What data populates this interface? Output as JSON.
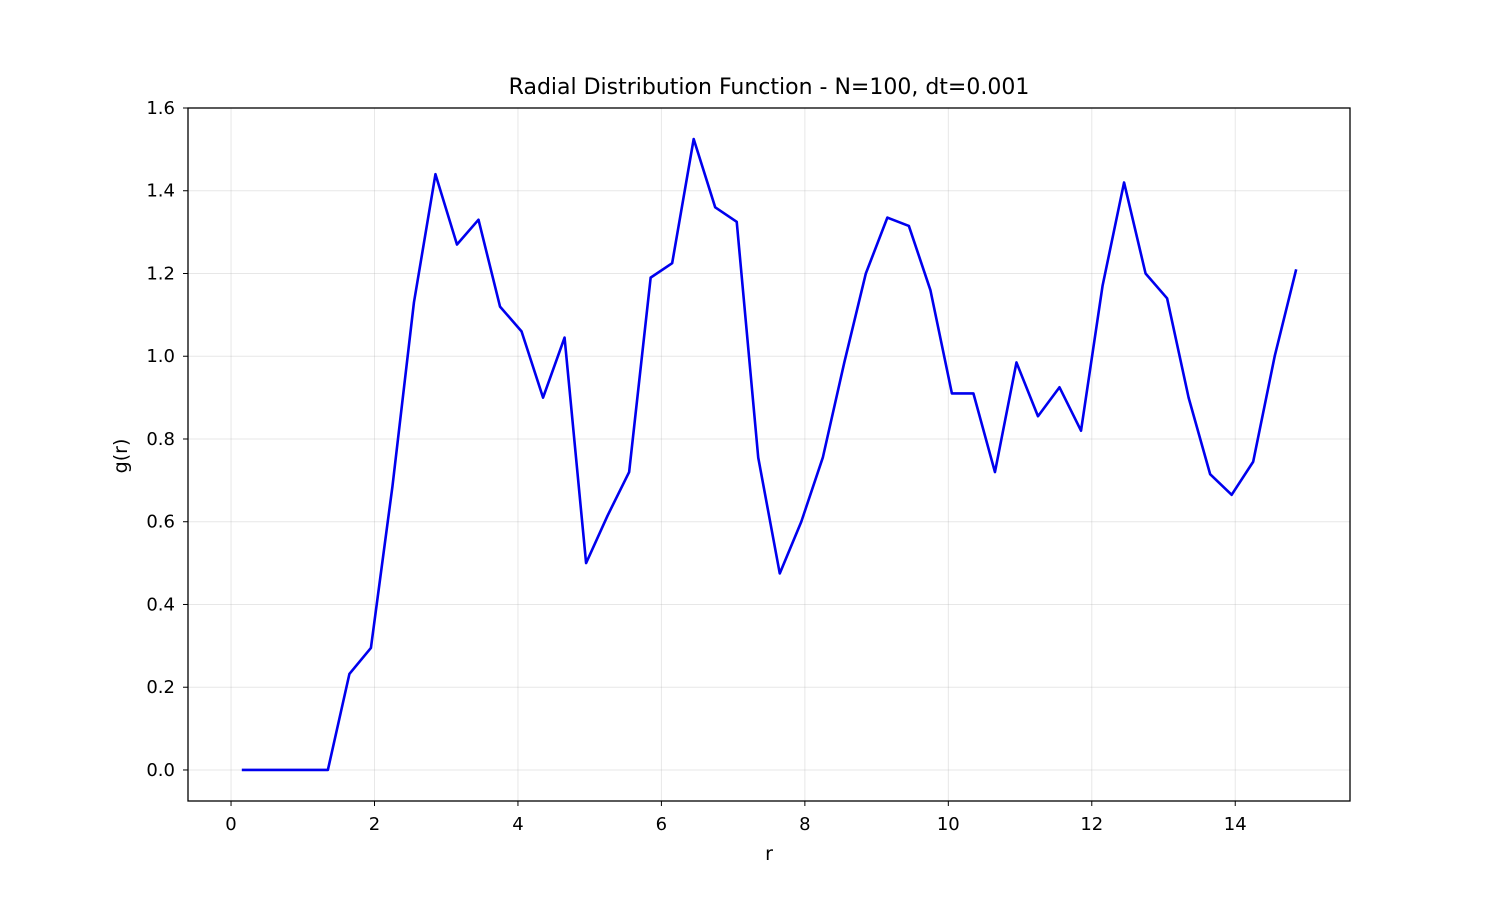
{
  "chart_data": {
    "type": "line",
    "title": "Radial Distribution Function - N=100, dt=0.001",
    "xlabel": "r",
    "ylabel": "g(r)",
    "xlim": [
      -0.6,
      15.6
    ],
    "ylim": [
      -0.075,
      1.6
    ],
    "xticks": [
      0,
      2,
      4,
      6,
      8,
      10,
      12,
      14
    ],
    "yticks": [
      0.0,
      0.2,
      0.4,
      0.6,
      0.8,
      1.0,
      1.2,
      1.4,
      1.6
    ],
    "grid": true,
    "series": [
      {
        "color": "#0000ee",
        "x": [
          0.15,
          0.45,
          0.75,
          1.05,
          1.35,
          1.65,
          1.95,
          2.25,
          2.55,
          2.85,
          3.15,
          3.45,
          3.75,
          4.05,
          4.35,
          4.65,
          4.95,
          5.25,
          5.55,
          5.85,
          6.15,
          6.45,
          6.75,
          7.05,
          7.35,
          7.65,
          7.95,
          8.25,
          8.55,
          8.85,
          9.15,
          9.45,
          9.75,
          10.05,
          10.35,
          10.65,
          10.95,
          11.25,
          11.55,
          11.85,
          12.15,
          12.45,
          12.75,
          13.05,
          13.35,
          13.65,
          13.95,
          14.25,
          14.55,
          14.85
        ],
        "y": [
          0.0,
          0.0,
          0.0,
          0.0,
          0.0,
          0.232,
          0.295,
          0.685,
          1.13,
          1.44,
          1.27,
          1.33,
          1.12,
          1.06,
          0.9,
          1.045,
          0.5,
          0.615,
          0.72,
          1.19,
          1.225,
          1.525,
          1.36,
          1.325,
          0.755,
          0.475,
          0.6,
          0.755,
          0.985,
          1.2,
          1.335,
          1.315,
          1.16,
          0.91,
          0.91,
          0.72,
          0.985,
          0.855,
          0.925,
          0.82,
          1.17,
          1.42,
          1.2,
          1.14,
          0.9,
          0.715,
          0.665,
          0.745,
          1.0,
          1.21
        ]
      }
    ]
  }
}
